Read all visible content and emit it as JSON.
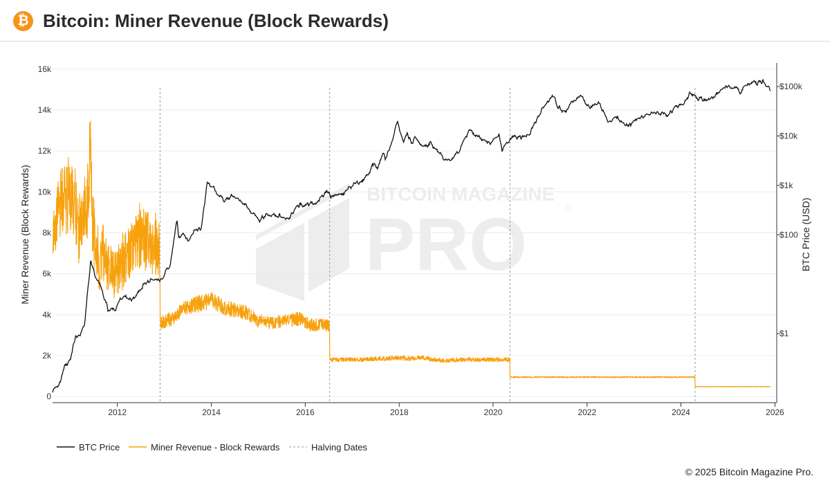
{
  "header": {
    "logo_glyph": "₿",
    "title": "Bitcoin: Miner Revenue (Block Rewards)"
  },
  "watermark": {
    "line1": "BITCOIN MAGAZINE",
    "line2": "PRO",
    "mark": "®"
  },
  "copyright": "© 2025 Bitcoin Magazine Pro.",
  "colors": {
    "price": "#111111",
    "revenue": "#f7a10d",
    "halving": "#9a9a9a",
    "watermark": "#d0d0d0"
  },
  "chart_data": {
    "type": "line",
    "title": "Bitcoin: Miner Revenue (Block Rewards)",
    "x_axis": {
      "type": "date",
      "range": [
        "2010-08-15",
        "2026-01-15"
      ],
      "tick_labels": [
        "2012",
        "2014",
        "2016",
        "2018",
        "2020",
        "2022",
        "2024",
        "2026"
      ]
    },
    "y_left": {
      "label": "Miner Revenue (Block Rewards)",
      "range": [
        -300,
        16300
      ],
      "tick_values": [
        0,
        2000,
        4000,
        6000,
        8000,
        10000,
        12000,
        14000,
        16000
      ],
      "tick_labels": [
        "0",
        "2k",
        "4k",
        "6k",
        "8k",
        "10k",
        "12k",
        "14k",
        "16k"
      ]
    },
    "y_right": {
      "label": "BTC Price (USD)",
      "scale": "log",
      "range": [
        0.04,
        300000
      ],
      "tick_values": [
        1,
        100,
        1000,
        10000,
        100000
      ],
      "tick_labels": [
        "$1",
        "$100",
        "$1k",
        "$10k",
        "$100k"
      ]
    },
    "legend": {
      "position": "bottom-left",
      "items": [
        "BTC Price",
        "Miner Revenue - Block Rewards",
        "Halving Dates"
      ]
    },
    "grid": "horizontal",
    "halving_dates": [
      "2012-11-28",
      "2016-07-09",
      "2020-05-11",
      "2024-04-20"
    ],
    "series": [
      {
        "name": "BTC Price",
        "axis": "right",
        "x": [
          "2010-08-15",
          "2010-10-15",
          "2010-11-15",
          "2011-01-01",
          "2011-02-10",
          "2011-03-15",
          "2011-04-20",
          "2011-06-08",
          "2011-07-15",
          "2011-08-20",
          "2011-10-20",
          "2011-12-15",
          "2012-02-01",
          "2012-05-01",
          "2012-08-15",
          "2012-10-01",
          "2012-12-15",
          "2013-02-15",
          "2013-04-09",
          "2013-04-20",
          "2013-06-01",
          "2013-07-05",
          "2013-08-20",
          "2013-10-15",
          "2013-11-30",
          "2014-01-15",
          "2014-02-15",
          "2014-04-15",
          "2014-06-01",
          "2014-08-15",
          "2014-10-15",
          "2015-01-14",
          "2015-03-01",
          "2015-06-01",
          "2015-08-25",
          "2015-11-04",
          "2016-01-15",
          "2016-03-15",
          "2016-06-17",
          "2016-08-01",
          "2016-10-15",
          "2017-01-01",
          "2017-03-01",
          "2017-05-15",
          "2017-06-15",
          "2017-07-15",
          "2017-09-01",
          "2017-09-15",
          "2017-11-01",
          "2017-12-17",
          "2018-02-06",
          "2018-03-05",
          "2018-04-06",
          "2018-05-05",
          "2018-07-01",
          "2018-09-01",
          "2018-11-20",
          "2018-12-15",
          "2019-02-15",
          "2019-04-15",
          "2019-06-26",
          "2019-09-01",
          "2019-12-15",
          "2020-02-15",
          "2020-03-13",
          "2020-05-15",
          "2020-07-20",
          "2020-10-15",
          "2020-12-31",
          "2021-02-15",
          "2021-04-14",
          "2021-05-20",
          "2021-07-20",
          "2021-09-01",
          "2021-11-10",
          "2022-01-20",
          "2022-04-01",
          "2022-06-18",
          "2022-08-15",
          "2022-11-21",
          "2023-01-15",
          "2023-03-15",
          "2023-06-15",
          "2023-09-15",
          "2023-11-15",
          "2024-01-15",
          "2024-03-14",
          "2024-05-01",
          "2024-08-05",
          "2024-11-15",
          "2024-12-17",
          "2025-02-15",
          "2025-04-08",
          "2025-05-22",
          "2025-07-14",
          "2025-08-15",
          "2025-10-06",
          "2025-11-15",
          "2025-11-25"
        ],
        "values": [
          0.07,
          0.1,
          0.22,
          0.3,
          0.9,
          0.85,
          1.5,
          30,
          14,
          10,
          3,
          3,
          5.5,
          5,
          11,
          12,
          13,
          25,
          200,
          90,
          110,
          70,
          120,
          140,
          1100,
          900,
          650,
          480,
          600,
          500,
          350,
          200,
          260,
          240,
          220,
          380,
          420,
          420,
          750,
          580,
          640,
          1000,
          1200,
          1800,
          2900,
          2000,
          4800,
          3300,
          7000,
          19500,
          7000,
          11500,
          6700,
          9800,
          6300,
          7000,
          4300,
          3300,
          3600,
          5200,
          12900,
          9700,
          7100,
          10300,
          5000,
          9300,
          9200,
          11400,
          29000,
          47000,
          64000,
          38000,
          30000,
          48000,
          68000,
          36000,
          45000,
          19000,
          24000,
          15700,
          21000,
          25000,
          30000,
          26000,
          37000,
          42000,
          72000,
          59000,
          52000,
          90000,
          106000,
          96000,
          76000,
          111000,
          122000,
          117000,
          125000,
          96000,
          86000
        ]
      },
      {
        "name": "Miner Revenue - Block Rewards",
        "axis": "left",
        "x": [
          "2010-08-15",
          "2010-10-15",
          "2011-01-15",
          "2011-03-01",
          "2011-05-15",
          "2011-06-05",
          "2011-06-20",
          "2011-08-15",
          "2011-09-15",
          "2011-12-15",
          "2012-04-01",
          "2012-07-01",
          "2012-10-01",
          "2012-11-27",
          "2012-11-29",
          "2013-03-01",
          "2013-06-01",
          "2013-09-01",
          "2014-01-01",
          "2014-04-01",
          "2014-07-01",
          "2014-10-01",
          "2015-01-01",
          "2015-04-01",
          "2015-07-01",
          "2015-11-20",
          "2016-02-01",
          "2016-07-08",
          "2016-07-10",
          "2016-10-01",
          "2017-01-01",
          "2017-04-01",
          "2017-07-01",
          "2017-10-01",
          "2018-01-01",
          "2018-04-01",
          "2018-07-01",
          "2018-10-01",
          "2019-01-01",
          "2019-04-01",
          "2019-07-01",
          "2019-10-01",
          "2020-01-01",
          "2020-05-10",
          "2020-05-12",
          "2020-09-01",
          "2021-01-01",
          "2021-05-01",
          "2021-07-01",
          "2021-10-01",
          "2022-01-01",
          "2022-06-01",
          "2022-10-01",
          "2023-01-01",
          "2023-06-01",
          "2023-10-01",
          "2024-01-01",
          "2024-04-19",
          "2024-04-21",
          "2024-09-01",
          "2025-01-01",
          "2025-05-01",
          "2025-09-01",
          "2025-11-25"
        ],
        "values": [
          7800,
          9500,
          10000,
          8200,
          9500,
          12500,
          8500,
          6500,
          7000,
          6000,
          7000,
          7800,
          7400,
          7200,
          3600,
          3800,
          4300,
          4500,
          4700,
          4400,
          4200,
          4100,
          3700,
          3600,
          3700,
          3800,
          3500,
          3500,
          1800,
          1800,
          1800,
          1800,
          1850,
          1850,
          1900,
          1850,
          1900,
          1800,
          1750,
          1800,
          1800,
          1800,
          1800,
          1800,
          950,
          950,
          950,
          950,
          950,
          950,
          950,
          950,
          950,
          950,
          950,
          950,
          950,
          950,
          480,
          480,
          480,
          480,
          480,
          480
        ]
      },
      {
        "name": "Halving Dates"
      }
    ]
  }
}
